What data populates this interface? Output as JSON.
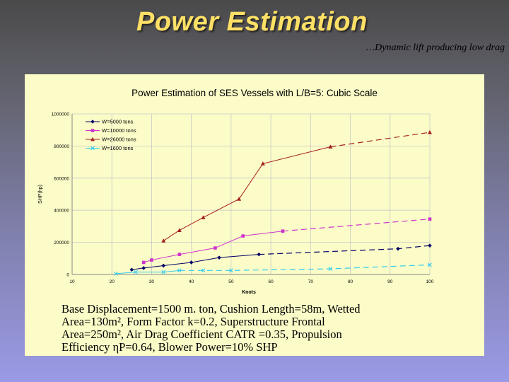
{
  "slide": {
    "title": "Power Estimation",
    "subtitle": "…Dynamic lift producing low drag"
  },
  "caption": "Base Displacement=1500 m. ton, Cushion Length=58m, Wetted\nArea=130m², Form Factor k=0.2, Superstructure Frontal\nArea=250m², Air Drag Coefficient CATR =0.35, Propulsion\nEfficiency ηP=0.64, Blower Power=10% SHP",
  "chart_data": {
    "type": "line",
    "title": "Power Estimation of SES Vessels with L/B=5: Cubic Scale",
    "xlabel": "Knots",
    "ylabel": "SHP(hp)",
    "xlim": [
      10,
      100
    ],
    "ylim": [
      0,
      1000000
    ],
    "xticks": [
      "10",
      "20",
      "30",
      "40",
      "50",
      "60",
      "70",
      "80",
      "90",
      "100"
    ],
    "yticks": [
      "0",
      "200000",
      "400000",
      "600000",
      "800000",
      "1000000"
    ],
    "grid": true,
    "legend_position": "top-left",
    "series": [
      {
        "name": "W=5000 tons",
        "color": "#000066",
        "marker": "diamond",
        "x": [
          25,
          28,
          33,
          40,
          47,
          57,
          92,
          100
        ],
        "y": [
          30000,
          40000,
          55000,
          75000,
          105000,
          125000,
          160000,
          180000
        ],
        "solid_until_x": 57
      },
      {
        "name": "W=10000 tons",
        "color": "#cc33cc",
        "marker": "square",
        "x": [
          28,
          30,
          37,
          46,
          53,
          63,
          100
        ],
        "y": [
          75000,
          90000,
          125000,
          165000,
          240000,
          270000,
          345000
        ],
        "solid_until_x": 63
      },
      {
        "name": "W=26000 tons",
        "color": "#a32020",
        "marker": "triangle",
        "x": [
          33,
          37,
          43,
          52,
          58,
          75,
          100
        ],
        "y": [
          210000,
          275000,
          355000,
          470000,
          690000,
          795000,
          885000
        ],
        "solid_until_x": 75
      },
      {
        "name": "W=1600 tons",
        "color": "#33ccee",
        "marker": "x",
        "x": [
          21,
          26,
          33,
          37,
          43,
          50,
          75,
          100
        ],
        "y": [
          5000,
          15000,
          15000,
          25000,
          25000,
          25000,
          35000,
          60000
        ],
        "solid_until_x": 37
      }
    ]
  }
}
